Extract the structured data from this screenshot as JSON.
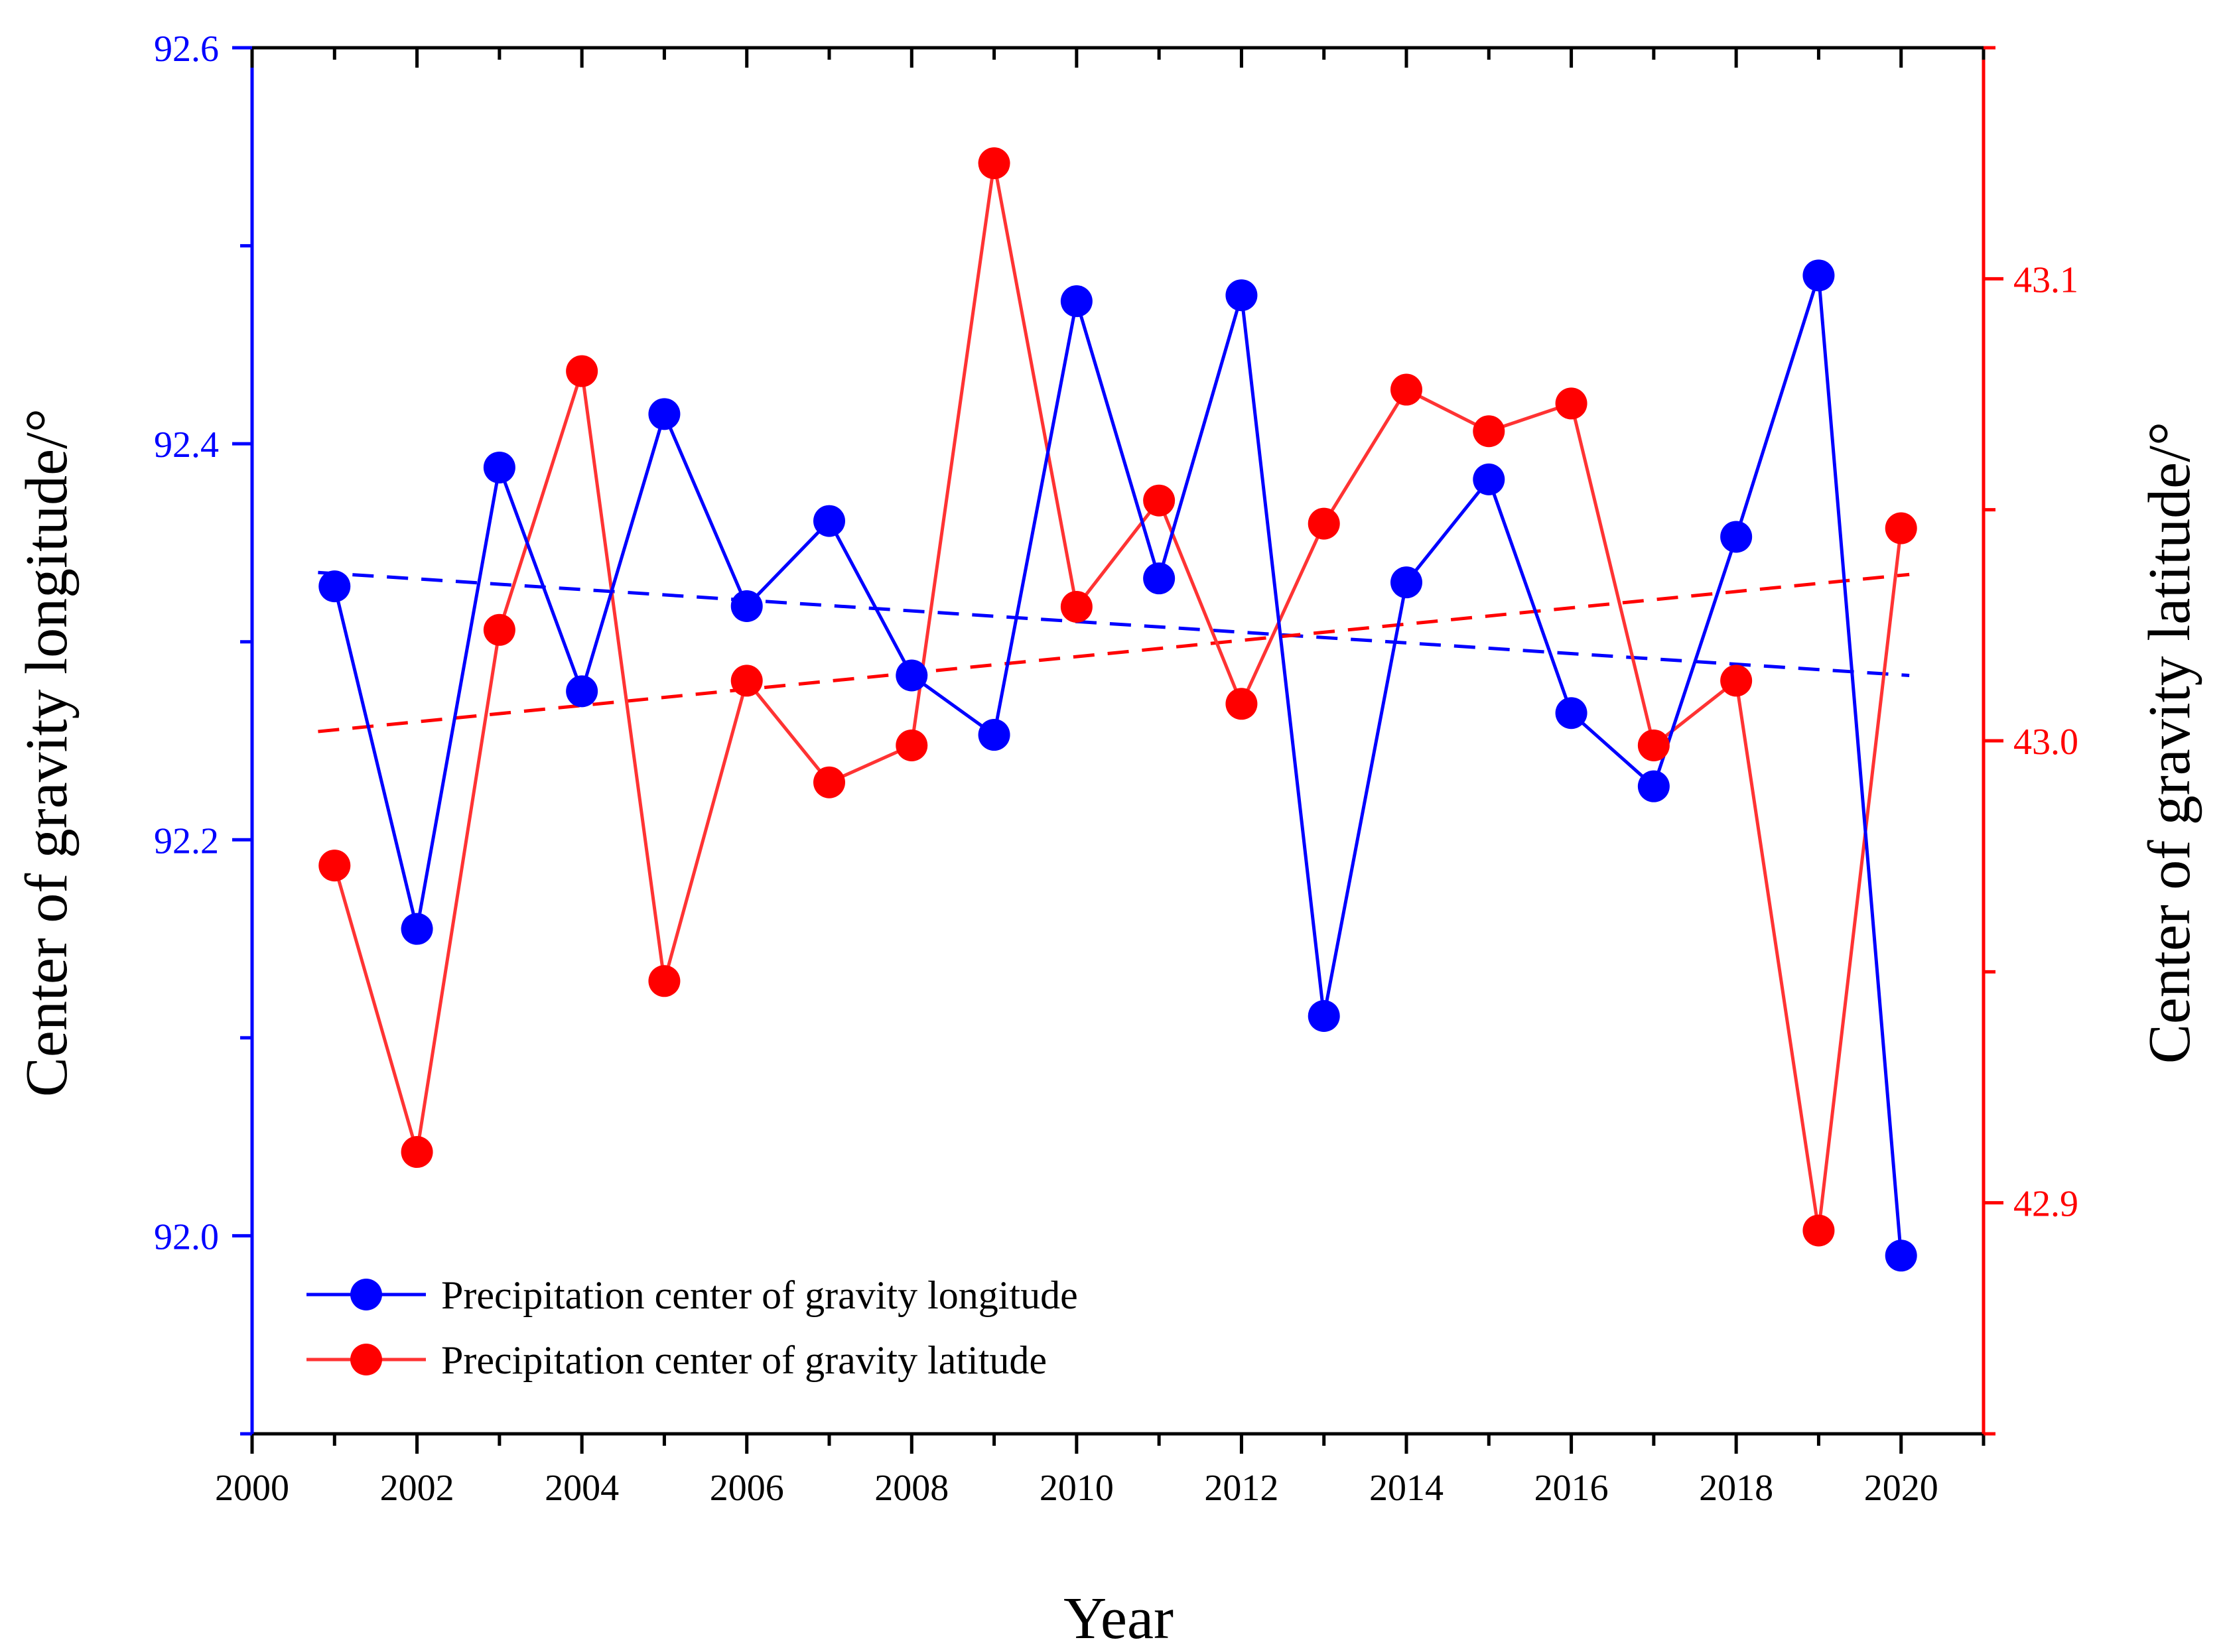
{
  "chart_data": {
    "type": "line",
    "title": "",
    "xlabel": "Year",
    "ylabel_left": "Center of gravity longitude/°",
    "ylabel_right": "Center of gravity latitude/°",
    "x_ticks": [
      "2000",
      "2002",
      "2004",
      "2006",
      "2008",
      "2010",
      "2012",
      "2014",
      "2016",
      "2018",
      "2020"
    ],
    "left_ticks": [
      "92.0",
      "92.2",
      "92.4",
      "92.6"
    ],
    "right_ticks": [
      "42.9",
      "43.0",
      "43.1"
    ],
    "xlim": [
      2000,
      2021
    ],
    "ylim_left": [
      91.9,
      92.6
    ],
    "ylim_right": [
      42.85,
      43.15
    ],
    "grid": false,
    "legend_position": "bottom-left",
    "x": [
      2001,
      2002,
      2003,
      2004,
      2005,
      2006,
      2007,
      2008,
      2009,
      2010,
      2011,
      2012,
      2013,
      2014,
      2015,
      2016,
      2017,
      2018,
      2019,
      2020
    ],
    "series": [
      {
        "name": "Precipitation center of gravity longitude",
        "axis": "left",
        "color": "#0000ff",
        "values": [
          92.328,
          92.155,
          92.388,
          92.275,
          92.415,
          92.318,
          92.361,
          92.283,
          92.253,
          92.472,
          92.332,
          92.475,
          92.111,
          92.33,
          92.382,
          92.264,
          92.227,
          92.353,
          92.485,
          91.99
        ],
        "trend": [
          92.335,
          92.283
        ]
      },
      {
        "name": "Precipitation center of gravity latitude",
        "axis": "right",
        "color": "#ff3333",
        "values": [
          42.973,
          42.911,
          43.024,
          43.08,
          42.948,
          43.013,
          42.991,
          42.999,
          43.125,
          43.029,
          43.052,
          43.008,
          43.047,
          43.076,
          43.067,
          43.073,
          42.999,
          43.013,
          42.894,
          43.046
        ],
        "trend": [
          43.002,
          43.036
        ]
      }
    ]
  }
}
